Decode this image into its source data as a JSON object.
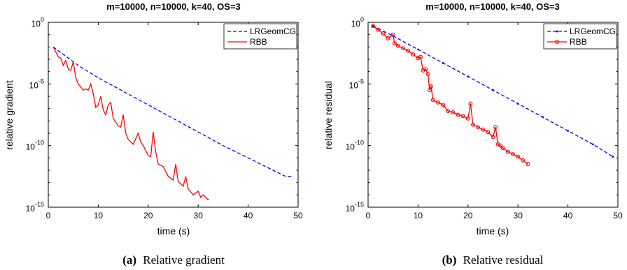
{
  "chart_data": [
    {
      "type": "line",
      "title": "m=10000, n=10000, k=40, OS=3",
      "xlabel": "time (s)",
      "ylabel": "relative gradient",
      "xlim": [
        0,
        50
      ],
      "ylim": [
        1e-15,
        1
      ],
      "yscale": "log",
      "xticks": [
        "0",
        "10",
        "20",
        "30",
        "40",
        "50"
      ],
      "yticks": [
        {
          "base": "10",
          "exp": "0",
          "value": 1
        },
        {
          "base": "10",
          "exp": "-5",
          "value": 1e-05
        },
        {
          "base": "10",
          "exp": "-10",
          "value": 1e-10
        },
        {
          "base": "10",
          "exp": "-15",
          "value": 1e-15
        }
      ],
      "caption_label": "(a)",
      "caption_text": "Relative gradient",
      "legend_position": "top-right",
      "series": [
        {
          "name": "LRGeomCG",
          "color": "#0000ff",
          "style": "dashed",
          "marker": "none",
          "x": [
            1,
            3,
            6,
            10,
            15,
            20,
            25,
            30,
            35,
            40,
            45,
            47.5,
            49
          ],
          "y": [
            0.01,
            0.00251,
            0.000316,
            3.16e-05,
            2.51e-06,
            2e-07,
            1.58e-08,
            1.26e-09,
            1e-10,
            1e-11,
            1e-12,
            3.16e-13,
            3.16e-13
          ]
        },
        {
          "name": "RBB",
          "color": "#ff0000",
          "style": "solid",
          "marker": "none",
          "x": [
            1,
            2,
            2.5,
            3,
            3.5,
            4,
            4.5,
            5,
            5.5,
            6,
            7,
            7.5,
            8,
            8.5,
            9,
            9.5,
            10,
            10.5,
            11,
            11.5,
            12,
            12.5,
            13,
            14,
            14.5,
            15,
            15.5,
            16,
            17,
            18,
            18.5,
            19,
            20,
            20.5,
            21,
            21.5,
            22,
            23,
            24,
            25,
            25.5,
            26,
            27,
            27.5,
            28,
            29,
            30,
            30.5,
            31,
            32,
            32.2
          ],
          "y": [
            0.01,
            0.00158,
            0.00126,
            0.000316,
            0.000794,
            0.000158,
            0.000126,
            0.00063,
            3.16e-05,
            1e-05,
            3.16e-06,
            3.98e-06,
            3.16e-06,
            1e-05,
            1.58e-06,
            1.26e-07,
            2e-07,
            1e-06,
            7.9e-08,
            3.16e-08,
            2e-07,
            3.16e-07,
            1.58e-08,
            3.98e-09,
            3.16e-09,
            3.16e-08,
            1e-09,
            3.16e-10,
            1.26e-10,
            1e-09,
            2e-10,
            1e-10,
            1.58e-11,
            1.26e-11,
            1.26e-09,
            3.16e-11,
            3.16e-12,
            2e-12,
            3.16e-13,
            1.58e-13,
            3.16e-12,
            1.26e-13,
            5e-14,
            3.16e-13,
            3.16e-14,
            1e-14,
            2e-14,
            6.3e-15,
            1e-14,
            3.98e-15,
            3.98e-15
          ]
        }
      ]
    },
    {
      "type": "line",
      "title": "m=10000, n=10000, k=40, OS=3",
      "xlabel": "time (s)",
      "ylabel": "relative residual",
      "xlim": [
        0,
        50
      ],
      "ylim": [
        1e-15,
        1
      ],
      "yscale": "log",
      "xticks": [
        "0",
        "10",
        "20",
        "30",
        "40",
        "50"
      ],
      "yticks": [
        {
          "base": "10",
          "exp": "0",
          "value": 1
        },
        {
          "base": "10",
          "exp": "-5",
          "value": 1e-05
        },
        {
          "base": "10",
          "exp": "-10",
          "value": 1e-10
        },
        {
          "base": "10",
          "exp": "-15",
          "value": 1e-15
        }
      ],
      "caption_label": "(b)",
      "caption_text": "Relative residual",
      "legend_position": "top-right",
      "series": [
        {
          "name": "LRGeomCG",
          "color": "#0000ff",
          "style": "dashed",
          "marker": "dot",
          "x": [
            1,
            5,
            10,
            15,
            20,
            25,
            30,
            35,
            40,
            45,
            49
          ],
          "y": [
            0.5,
            0.079,
            0.0063,
            0.0005,
            3.98e-05,
            3.16e-06,
            2.5e-07,
            2e-08,
            1.58e-09,
            1.26e-10,
            1.26e-11
          ]
        },
        {
          "name": "RBB",
          "color": "#ff0000",
          "style": "solid",
          "marker": "circle",
          "x": [
            1,
            2,
            3,
            4,
            5,
            5.3,
            6,
            7,
            8,
            9,
            10,
            10.5,
            11,
            11.5,
            12,
            12.3,
            12.6,
            13,
            14,
            15,
            16,
            17,
            18,
            19,
            20,
            20.5,
            21,
            22,
            23,
            24,
            25,
            25.5,
            26,
            26.5,
            27,
            28,
            29,
            30,
            31,
            32
          ],
          "y": [
            0.5,
            0.25,
            0.126,
            0.05,
            0.1,
            0.02,
            0.0126,
            0.0079,
            0.005,
            0.0025,
            0.00126,
            0.00158,
            0.000126,
            0.000158,
            6.3e-05,
            3.16e-06,
            6.3e-06,
            5e-07,
            3.16e-07,
            2e-07,
            6.3e-08,
            5e-08,
            3.16e-08,
            2.5e-08,
            1.58e-08,
            2.5e-07,
            5e-09,
            3.16e-09,
            2e-09,
            1.26e-09,
            5e-10,
            3.16e-09,
            1.26e-10,
            1e-10,
            6.3e-11,
            3.16e-11,
            2e-11,
            1.26e-11,
            6.3e-12,
            3.16e-12
          ]
        }
      ]
    }
  ]
}
